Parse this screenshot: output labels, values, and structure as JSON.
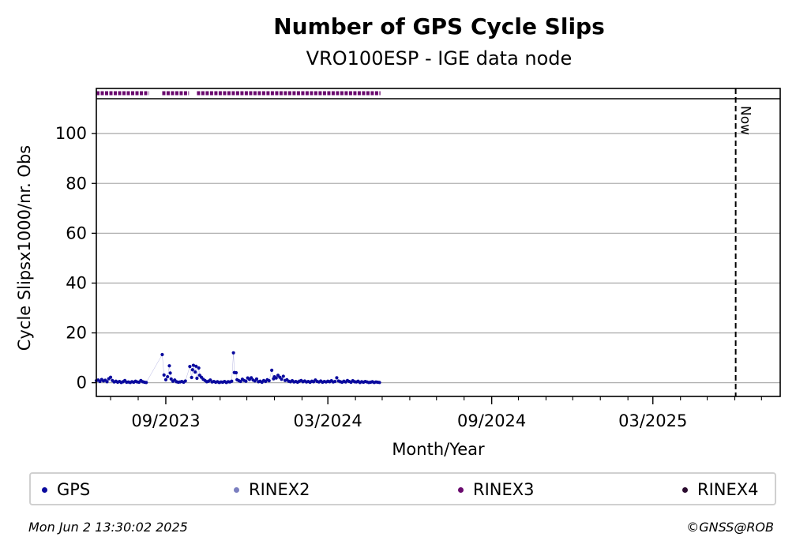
{
  "chart_data": {
    "type": "scatter",
    "title": "Number of GPS Cycle Slips",
    "subtitle": "VRO100ESP - IGE data node",
    "xlabel": "Month/Year",
    "ylabel": "Cycle Slipsx1000/nr. Obs",
    "xlim": [
      "2023-06-15",
      "2025-07-22"
    ],
    "ylim": [
      -5.5,
      114
    ],
    "yticks": [
      0,
      20,
      40,
      60,
      80,
      100
    ],
    "xtick_labels": [
      {
        "date": "2023-09-01",
        "label": "09/2023"
      },
      {
        "date": "2024-03-01",
        "label": "03/2024"
      },
      {
        "date": "2024-09-01",
        "label": "09/2024"
      },
      {
        "date": "2025-03-01",
        "label": "03/2025"
      }
    ],
    "minor_months": [
      "2023-07-01",
      "2023-08-01",
      "2023-10-01",
      "2023-11-01",
      "2023-12-01",
      "2024-01-01",
      "2024-02-01",
      "2024-04-01",
      "2024-05-01",
      "2024-06-01",
      "2024-07-01",
      "2024-08-01",
      "2024-10-01",
      "2024-11-01",
      "2024-12-01",
      "2025-01-01",
      "2025-02-01",
      "2025-04-01",
      "2025-05-01",
      "2025-06-01",
      "2025-07-01"
    ],
    "grid": "horizontal",
    "now_marker": {
      "date": "2025-06-02",
      "label": "Now"
    },
    "series": [
      {
        "name": "GPS",
        "color": "#0a0a9e",
        "points": [
          [
            "2023-06-15",
            0.8
          ],
          [
            "2023-06-17",
            1.1
          ],
          [
            "2023-06-19",
            0.5
          ],
          [
            "2023-06-21",
            1.3
          ],
          [
            "2023-06-23",
            0.7
          ],
          [
            "2023-06-25",
            1.0
          ],
          [
            "2023-06-27",
            0.4
          ],
          [
            "2023-06-29",
            1.6
          ],
          [
            "2023-07-01",
            2.2
          ],
          [
            "2023-07-03",
            0.9
          ],
          [
            "2023-07-05",
            0.3
          ],
          [
            "2023-07-07",
            0.6
          ],
          [
            "2023-07-09",
            0.2
          ],
          [
            "2023-07-11",
            0.5
          ],
          [
            "2023-07-13",
            0.1
          ],
          [
            "2023-07-15",
            0.4
          ],
          [
            "2023-07-17",
            0.9
          ],
          [
            "2023-07-19",
            0.2
          ],
          [
            "2023-07-21",
            0.3
          ],
          [
            "2023-07-23",
            0.1
          ],
          [
            "2023-07-25",
            0.4
          ],
          [
            "2023-07-27",
            0.2
          ],
          [
            "2023-07-29",
            0.6
          ],
          [
            "2023-07-31",
            0.3
          ],
          [
            "2023-08-02",
            0.2
          ],
          [
            "2023-08-04",
            0.9
          ],
          [
            "2023-08-06",
            0.4
          ],
          [
            "2023-08-08",
            0.2
          ],
          [
            "2023-08-10",
            0.1
          ],
          [
            "2023-08-28",
            11.3
          ],
          [
            "2023-08-30",
            3.1
          ],
          [
            "2023-09-01",
            1.2
          ],
          [
            "2023-09-03",
            2.4
          ],
          [
            "2023-09-05",
            6.8
          ],
          [
            "2023-09-06",
            3.9
          ],
          [
            "2023-09-07",
            1.5
          ],
          [
            "2023-09-09",
            0.6
          ],
          [
            "2023-09-11",
            1.1
          ],
          [
            "2023-09-13",
            0.4
          ],
          [
            "2023-09-15",
            0.2
          ],
          [
            "2023-09-17",
            0.3
          ],
          [
            "2023-09-19",
            0.5
          ],
          [
            "2023-09-21",
            0.2
          ],
          [
            "2023-09-23",
            0.7
          ],
          [
            "2023-09-28",
            6.5
          ],
          [
            "2023-09-30",
            2.1
          ],
          [
            "2023-10-01",
            5.2
          ],
          [
            "2023-10-02",
            7.0
          ],
          [
            "2023-10-04",
            4.3
          ],
          [
            "2023-10-05",
            6.6
          ],
          [
            "2023-10-06",
            1.8
          ],
          [
            "2023-10-08",
            5.9
          ],
          [
            "2023-10-09",
            3.0
          ],
          [
            "2023-10-11",
            2.2
          ],
          [
            "2023-10-13",
            1.4
          ],
          [
            "2023-10-15",
            0.9
          ],
          [
            "2023-10-17",
            0.4
          ],
          [
            "2023-10-19",
            0.6
          ],
          [
            "2023-10-21",
            1.1
          ],
          [
            "2023-10-23",
            0.3
          ],
          [
            "2023-10-25",
            0.5
          ],
          [
            "2023-10-27",
            0.2
          ],
          [
            "2023-10-29",
            0.4
          ],
          [
            "2023-10-31",
            0.1
          ],
          [
            "2023-11-02",
            0.3
          ],
          [
            "2023-11-04",
            0.2
          ],
          [
            "2023-11-06",
            0.5
          ],
          [
            "2023-11-08",
            0.1
          ],
          [
            "2023-11-10",
            0.4
          ],
          [
            "2023-11-12",
            0.3
          ],
          [
            "2023-11-14",
            0.6
          ],
          [
            "2023-11-16",
            12.0
          ],
          [
            "2023-11-17",
            4.1
          ],
          [
            "2023-11-19",
            4.0
          ],
          [
            "2023-11-20",
            1.2
          ],
          [
            "2023-11-22",
            0.8
          ],
          [
            "2023-11-24",
            0.5
          ],
          [
            "2023-11-26",
            1.4
          ],
          [
            "2023-11-28",
            0.9
          ],
          [
            "2023-11-30",
            0.6
          ],
          [
            "2023-12-02",
            1.9
          ],
          [
            "2023-12-04",
            1.3
          ],
          [
            "2023-12-06",
            2.0
          ],
          [
            "2023-12-08",
            1.1
          ],
          [
            "2023-12-10",
            0.7
          ],
          [
            "2023-12-12",
            1.5
          ],
          [
            "2023-12-14",
            0.4
          ],
          [
            "2023-12-16",
            0.6
          ],
          [
            "2023-12-18",
            0.2
          ],
          [
            "2023-12-20",
            0.9
          ],
          [
            "2023-12-22",
            0.5
          ],
          [
            "2023-12-24",
            1.2
          ],
          [
            "2023-12-26",
            0.8
          ],
          [
            "2023-12-29",
            5.0
          ],
          [
            "2023-12-31",
            1.6
          ],
          [
            "2024-01-01",
            2.4
          ],
          [
            "2024-01-03",
            1.9
          ],
          [
            "2024-01-05",
            3.0
          ],
          [
            "2024-01-07",
            2.2
          ],
          [
            "2024-01-09",
            1.4
          ],
          [
            "2024-01-11",
            2.6
          ],
          [
            "2024-01-13",
            0.9
          ],
          [
            "2024-01-15",
            1.2
          ],
          [
            "2024-01-17",
            0.6
          ],
          [
            "2024-01-19",
            0.4
          ],
          [
            "2024-01-21",
            0.8
          ],
          [
            "2024-01-23",
            0.3
          ],
          [
            "2024-01-25",
            0.5
          ],
          [
            "2024-01-27",
            0.2
          ],
          [
            "2024-01-29",
            0.6
          ],
          [
            "2024-01-31",
            0.9
          ],
          [
            "2024-02-02",
            0.4
          ],
          [
            "2024-02-04",
            0.7
          ],
          [
            "2024-02-06",
            0.3
          ],
          [
            "2024-02-08",
            0.5
          ],
          [
            "2024-02-10",
            0.2
          ],
          [
            "2024-02-12",
            0.6
          ],
          [
            "2024-02-14",
            0.4
          ],
          [
            "2024-02-16",
            1.1
          ],
          [
            "2024-02-18",
            0.5
          ],
          [
            "2024-02-20",
            0.3
          ],
          [
            "2024-02-22",
            0.7
          ],
          [
            "2024-02-24",
            0.2
          ],
          [
            "2024-02-26",
            0.5
          ],
          [
            "2024-02-28",
            0.3
          ],
          [
            "2024-03-01",
            0.6
          ],
          [
            "2024-03-03",
            0.4
          ],
          [
            "2024-03-05",
            0.8
          ],
          [
            "2024-03-07",
            0.3
          ],
          [
            "2024-03-09",
            0.5
          ],
          [
            "2024-03-11",
            2.0
          ],
          [
            "2024-03-13",
            0.7
          ],
          [
            "2024-03-15",
            0.4
          ],
          [
            "2024-03-17",
            0.2
          ],
          [
            "2024-03-19",
            0.6
          ],
          [
            "2024-03-21",
            0.3
          ],
          [
            "2024-03-23",
            0.9
          ],
          [
            "2024-03-25",
            0.5
          ],
          [
            "2024-03-27",
            0.2
          ],
          [
            "2024-03-29",
            0.8
          ],
          [
            "2024-03-31",
            0.4
          ],
          [
            "2024-04-02",
            0.3
          ],
          [
            "2024-04-04",
            0.6
          ],
          [
            "2024-04-06",
            0.1
          ],
          [
            "2024-04-08",
            0.4
          ],
          [
            "2024-04-10",
            0.2
          ],
          [
            "2024-04-12",
            0.5
          ],
          [
            "2024-04-14",
            0.3
          ],
          [
            "2024-04-16",
            0.1
          ],
          [
            "2024-04-18",
            0.2
          ],
          [
            "2024-04-20",
            0.4
          ],
          [
            "2024-04-22",
            0.1
          ],
          [
            "2024-04-24",
            0.3
          ],
          [
            "2024-04-26",
            0.2
          ],
          [
            "2024-04-28",
            0.1
          ]
        ]
      },
      {
        "name": "RINEX2",
        "color": "#7b7fc0",
        "points": []
      },
      {
        "name": "RINEX3",
        "color": "#6a0a6e",
        "availability": [
          [
            "2023-06-15",
            "2023-08-13"
          ],
          [
            "2023-08-28",
            "2023-09-27"
          ],
          [
            "2023-10-06",
            "2024-04-29"
          ]
        ]
      },
      {
        "name": "RINEX4",
        "color": "#2a0a2e",
        "points": []
      }
    ]
  },
  "legend": [
    {
      "label": "GPS",
      "color": "#0a0a9e"
    },
    {
      "label": "RINEX2",
      "color": "#7b7fc0"
    },
    {
      "label": "RINEX3",
      "color": "#6a0a6e"
    },
    {
      "label": "RINEX4",
      "color": "#2a0a2e"
    }
  ],
  "footer": {
    "timestamp": "Mon Jun  2 13:30:02 2025",
    "copyright": "©GNSS@ROB"
  }
}
